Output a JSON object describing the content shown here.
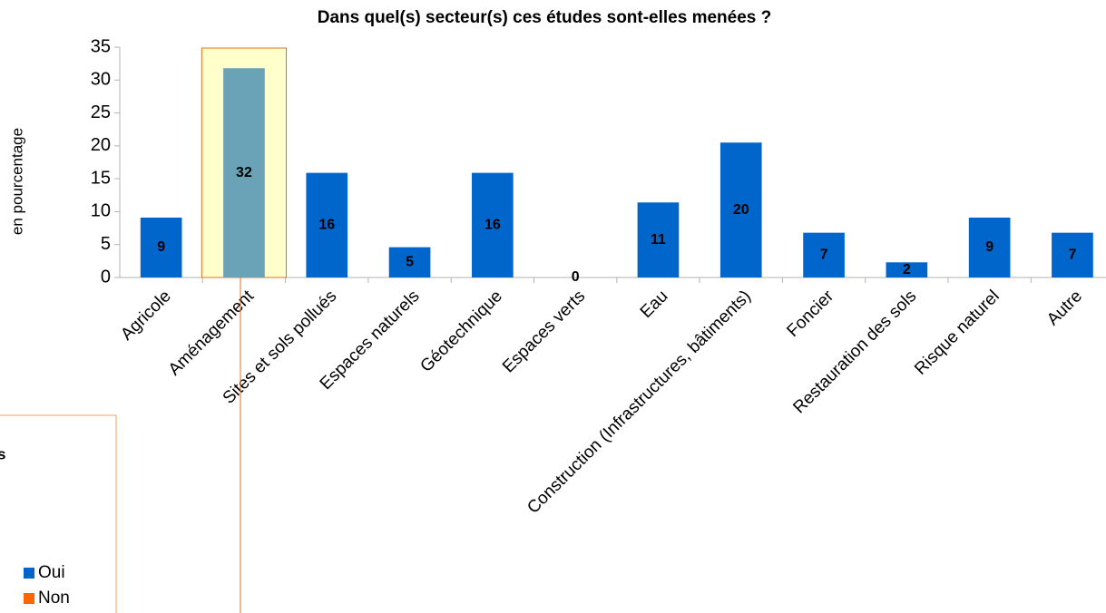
{
  "chart_data": {
    "type": "bar",
    "title": "Dans quel(s) secteur(s) ces études sont-elles menées ?",
    "y_label": "en pourcentage",
    "categories": [
      "Agricole",
      "Aménagement",
      "Sites et sols pollués",
      "Espaces naturels",
      "Géotechnique",
      "Espaces verts",
      "Eau",
      "Construction (Infrastructures, bâtiments)",
      "Foncier",
      "Restauration des sols",
      "Risque naturel",
      "Autre"
    ],
    "values": [
      9.1,
      31.8,
      15.9,
      4.6,
      15.9,
      0,
      11.4,
      20.5,
      6.8,
      2.3,
      9.1,
      6.8
    ],
    "value_labels": [
      "9",
      "32",
      "16",
      "5",
      "16",
      "0",
      "11",
      "20",
      "7",
      "2",
      "9",
      "7"
    ],
    "color": "#0066cc",
    "selected_index": 1,
    "selected_color": "#6aa2b8",
    "ylim": [
      0,
      35
    ],
    "yticks": [
      0,
      5,
      10,
      15,
      20,
      25,
      30,
      35
    ],
    "legend_title": "s",
    "legend": [
      {
        "name": "Oui",
        "color": "#0066cc"
      },
      {
        "name": "Non",
        "color": "#ff6600"
      }
    ]
  }
}
